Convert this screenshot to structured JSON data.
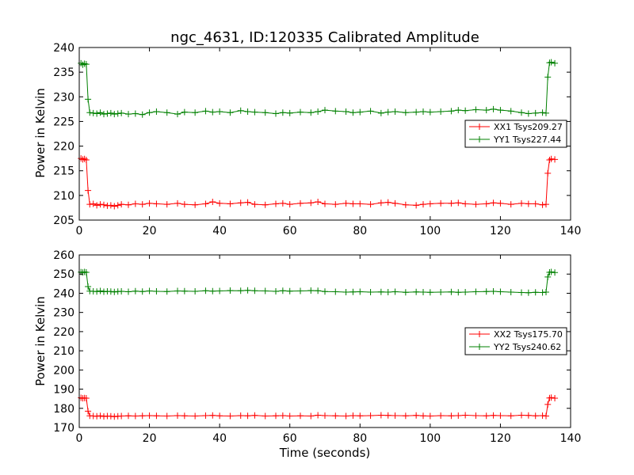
{
  "chart_data": [
    {
      "type": "line",
      "title": "ngc_4631, ID:120335 Calibrated Amplitude",
      "xlabel": "",
      "ylabel": "Power in Kelvin",
      "xlim": [
        0,
        140
      ],
      "ylim": [
        205,
        240
      ],
      "xticks": [
        0,
        20,
        40,
        60,
        80,
        100,
        120,
        140
      ],
      "yticks": [
        205,
        210,
        215,
        220,
        225,
        230,
        235,
        240
      ],
      "legend_position": "center-right",
      "grid": false,
      "marker": "plus",
      "series": [
        {
          "name": "XX1 Tsys209.27",
          "color": "#ff0000",
          "x": [
            0.5,
            1.0,
            1.5,
            2.0,
            2.5,
            3.0,
            4,
            5,
            6,
            7,
            8,
            9,
            10,
            11,
            12,
            14,
            16,
            18,
            20,
            22,
            25,
            28,
            30,
            33,
            36,
            38,
            40,
            43,
            46,
            48,
            50,
            53,
            56,
            58,
            60,
            63,
            66,
            68,
            70,
            73,
            76,
            78,
            80,
            83,
            86,
            88,
            90,
            93,
            96,
            98,
            100,
            103,
            106,
            108,
            110,
            113,
            116,
            118,
            120,
            123,
            126,
            128,
            130,
            132,
            133,
            133.5,
            134,
            134.5,
            135.5
          ],
          "y": [
            217.5,
            217.3,
            217.4,
            217.2,
            211.0,
            208.2,
            208.3,
            208.0,
            208.2,
            208.1,
            207.9,
            208.0,
            207.8,
            208.0,
            208.2,
            208.1,
            208.3,
            208.2,
            208.4,
            208.3,
            208.2,
            208.4,
            208.2,
            208.1,
            208.3,
            208.7,
            208.4,
            208.3,
            208.5,
            208.6,
            208.2,
            208.1,
            208.3,
            208.4,
            208.2,
            208.4,
            208.5,
            208.7,
            208.3,
            208.2,
            208.4,
            208.3,
            208.3,
            208.2,
            208.5,
            208.6,
            208.4,
            208.1,
            208.0,
            208.2,
            208.3,
            208.4,
            208.4,
            208.5,
            208.3,
            208.2,
            208.3,
            208.5,
            208.4,
            208.2,
            208.4,
            208.3,
            208.3,
            208.1,
            208.2,
            214.5,
            217.2,
            217.4,
            217.3
          ]
        },
        {
          "name": "YY1 Tsys227.44",
          "color": "#008000",
          "x": [
            0.5,
            1.0,
            1.5,
            2.0,
            2.5,
            3.0,
            4,
            5,
            6,
            7,
            8,
            9,
            10,
            11,
            12,
            14,
            16,
            18,
            20,
            22,
            25,
            28,
            30,
            33,
            36,
            38,
            40,
            43,
            46,
            48,
            50,
            53,
            56,
            58,
            60,
            63,
            66,
            68,
            70,
            73,
            76,
            78,
            80,
            83,
            86,
            88,
            90,
            93,
            96,
            98,
            100,
            103,
            106,
            108,
            110,
            113,
            116,
            118,
            120,
            123,
            126,
            128,
            130,
            132,
            133,
            133.5,
            134,
            134.5,
            135.5
          ],
          "y": [
            236.8,
            236.5,
            236.7,
            236.6,
            229.5,
            226.8,
            226.7,
            226.6,
            226.8,
            226.5,
            226.6,
            226.7,
            226.5,
            226.6,
            226.7,
            226.5,
            226.6,
            226.4,
            226.8,
            227.0,
            226.8,
            226.5,
            226.9,
            226.8,
            227.1,
            226.9,
            227.0,
            226.8,
            227.2,
            227.0,
            226.9,
            226.8,
            226.6,
            226.8,
            226.7,
            226.9,
            226.8,
            227.0,
            227.3,
            227.1,
            227.0,
            226.8,
            226.9,
            227.1,
            226.7,
            226.9,
            227.0,
            226.8,
            226.9,
            227.0,
            226.9,
            227.0,
            227.1,
            227.3,
            227.2,
            227.4,
            227.3,
            227.5,
            227.3,
            227.1,
            226.8,
            226.6,
            226.7,
            226.8,
            226.7,
            234.0,
            236.9,
            237.0,
            236.8
          ]
        }
      ]
    },
    {
      "type": "line",
      "title": "",
      "xlabel": "Time (seconds)",
      "ylabel": "Power in Kelvin",
      "xlim": [
        0,
        140
      ],
      "ylim": [
        170,
        260
      ],
      "xticks": [
        0,
        20,
        40,
        60,
        80,
        100,
        120,
        140
      ],
      "yticks": [
        170,
        180,
        190,
        200,
        210,
        220,
        230,
        240,
        250,
        260
      ],
      "legend_position": "center-right",
      "grid": false,
      "marker": "plus",
      "series": [
        {
          "name": "XX2 Tsys175.70",
          "color": "#ff0000",
          "x": [
            0.5,
            1.0,
            1.5,
            2.0,
            2.5,
            3.0,
            4,
            5,
            6,
            7,
            8,
            9,
            10,
            11,
            12,
            14,
            16,
            18,
            20,
            22,
            25,
            28,
            30,
            33,
            36,
            38,
            40,
            43,
            46,
            48,
            50,
            53,
            56,
            58,
            60,
            63,
            66,
            68,
            70,
            73,
            76,
            78,
            80,
            83,
            86,
            88,
            90,
            93,
            96,
            98,
            100,
            103,
            106,
            108,
            110,
            113,
            116,
            118,
            120,
            123,
            126,
            128,
            130,
            132,
            133,
            133.5,
            134,
            134.5,
            135.5
          ],
          "y": [
            185.5,
            185.2,
            185.4,
            185.3,
            178.5,
            176.1,
            176.0,
            175.9,
            176.1,
            175.8,
            176.0,
            175.9,
            175.7,
            175.9,
            176.0,
            176.1,
            176.0,
            176.1,
            176.2,
            176.1,
            176.0,
            176.2,
            176.1,
            176.0,
            176.2,
            176.3,
            176.1,
            176.0,
            176.2,
            176.1,
            176.3,
            176.0,
            176.1,
            176.2,
            176.0,
            176.1,
            176.0,
            176.4,
            176.2,
            176.1,
            176.0,
            176.2,
            176.1,
            176.2,
            176.4,
            176.3,
            176.2,
            176.1,
            176.3,
            176.1,
            176.0,
            176.2,
            176.1,
            176.2,
            176.4,
            176.2,
            176.1,
            176.3,
            176.2,
            176.1,
            176.4,
            176.3,
            176.1,
            176.2,
            176.0,
            182.0,
            185.4,
            185.6,
            185.3
          ]
        },
        {
          "name": "YY2 Tsys240.62",
          "color": "#008000",
          "x": [
            0.5,
            1.0,
            1.5,
            2.0,
            2.5,
            3.0,
            4,
            5,
            6,
            7,
            8,
            9,
            10,
            11,
            12,
            14,
            16,
            18,
            20,
            22,
            25,
            28,
            30,
            33,
            36,
            38,
            40,
            43,
            46,
            48,
            50,
            53,
            56,
            58,
            60,
            63,
            66,
            68,
            70,
            73,
            76,
            78,
            80,
            83,
            86,
            88,
            90,
            93,
            96,
            98,
            100,
            103,
            106,
            108,
            110,
            113,
            116,
            118,
            120,
            123,
            126,
            128,
            130,
            132,
            133,
            133.5,
            134,
            134.5,
            135.5
          ],
          "y": [
            251.0,
            250.8,
            251.1,
            250.9,
            243.5,
            241.1,
            241.0,
            240.9,
            241.2,
            240.8,
            241.0,
            240.9,
            240.7,
            240.9,
            241.0,
            240.8,
            241.1,
            240.9,
            241.2,
            241.0,
            240.9,
            241.2,
            241.1,
            241.0,
            241.3,
            241.1,
            241.2,
            241.4,
            241.3,
            241.5,
            241.3,
            241.2,
            241.0,
            241.3,
            241.1,
            241.2,
            241.4,
            241.3,
            240.9,
            240.8,
            240.6,
            240.7,
            240.8,
            240.6,
            240.7,
            240.6,
            240.8,
            240.5,
            240.7,
            240.6,
            240.5,
            240.6,
            240.7,
            240.5,
            240.6,
            240.8,
            240.9,
            241.0,
            240.8,
            240.6,
            240.4,
            240.3,
            240.5,
            240.4,
            240.6,
            248.5,
            250.9,
            251.1,
            250.8
          ]
        }
      ]
    }
  ]
}
